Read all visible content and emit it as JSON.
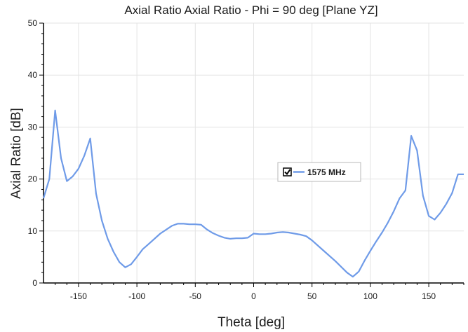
{
  "chart_data": {
    "type": "line",
    "title": "Axial Ratio Axial Ratio - Phi = 90 deg [Plane YZ]",
    "xlabel": "Theta [deg]",
    "ylabel": "Axial Ratio [dB]",
    "xlim": [
      -180,
      180
    ],
    "ylim": [
      0,
      50
    ],
    "xticks": [
      -150,
      -100,
      -50,
      0,
      50,
      100,
      150
    ],
    "yticks": [
      0,
      10,
      20,
      30,
      40,
      50
    ],
    "grid": true,
    "legend": {
      "position": "center-right",
      "entries": [
        "1575 MHz"
      ]
    },
    "colors": {
      "series": "#6f9be8"
    },
    "series": [
      {
        "name": "1575 MHz",
        "x": [
          -180,
          -175,
          -170,
          -165,
          -160,
          -155,
          -150,
          -145,
          -140,
          -135,
          -130,
          -125,
          -120,
          -115,
          -110,
          -105,
          -100,
          -95,
          -90,
          -80,
          -70,
          -65,
          -60,
          -55,
          -50,
          -45,
          -40,
          -35,
          -30,
          -25,
          -20,
          -15,
          -10,
          -5,
          0,
          5,
          10,
          15,
          20,
          25,
          30,
          35,
          40,
          45,
          50,
          60,
          70,
          80,
          85,
          90,
          95,
          100,
          105,
          110,
          115,
          120,
          125,
          130,
          135,
          140,
          145,
          150,
          155,
          160,
          165,
          170,
          175,
          180
        ],
        "y": [
          16.3,
          20.0,
          33.2,
          24.0,
          19.6,
          20.5,
          22.0,
          24.5,
          27.8,
          17.2,
          12.0,
          8.5,
          6.0,
          4.0,
          3.0,
          3.6,
          5.0,
          6.5,
          7.5,
          9.5,
          11.0,
          11.4,
          11.4,
          11.3,
          11.3,
          11.2,
          10.3,
          9.6,
          9.1,
          8.7,
          8.5,
          8.6,
          8.6,
          8.7,
          9.5,
          9.4,
          9.4,
          9.5,
          9.7,
          9.8,
          9.7,
          9.5,
          9.3,
          9.0,
          8.2,
          6.2,
          4.2,
          2.0,
          1.2,
          2.2,
          4.3,
          6.2,
          8.0,
          9.7,
          11.6,
          13.8,
          16.3,
          17.8,
          28.3,
          25.5,
          16.8,
          12.9,
          12.2,
          13.5,
          15.2,
          17.3,
          20.9,
          20.9
        ]
      }
    ]
  }
}
